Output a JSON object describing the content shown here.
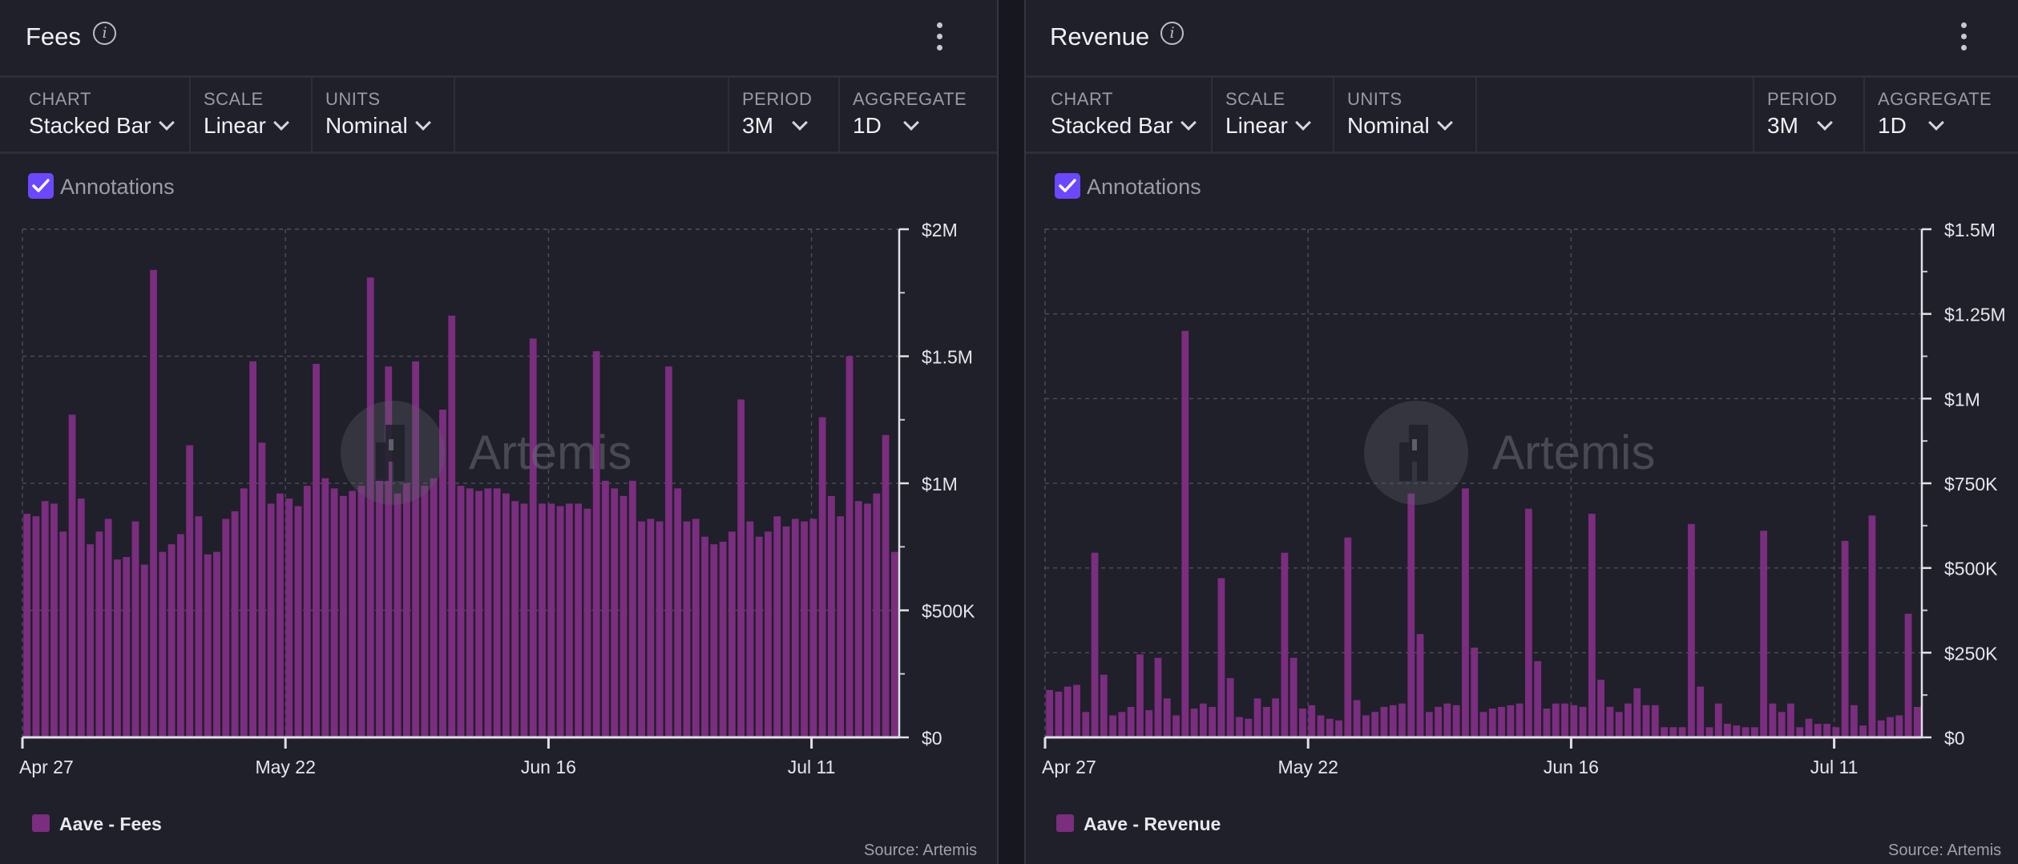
{
  "panels": [
    {
      "title": "Fees",
      "controls": {
        "chart": {
          "label": "CHART",
          "value": "Stacked Bar"
        },
        "scale": {
          "label": "SCALE",
          "value": "Linear"
        },
        "units": {
          "label": "UNITS",
          "value": "Nominal"
        },
        "period": {
          "label": "PERIOD",
          "value": "3M"
        },
        "aggregate": {
          "label": "AGGREGATE",
          "value": "1D"
        }
      },
      "annotations_label": "Annotations",
      "annotations_checked": true,
      "watermark": "Artemis",
      "legend": "Aave - Fees",
      "source": "Source: Artemis"
    },
    {
      "title": "Revenue",
      "controls": {
        "chart": {
          "label": "CHART",
          "value": "Stacked Bar"
        },
        "scale": {
          "label": "SCALE",
          "value": "Linear"
        },
        "units": {
          "label": "UNITS",
          "value": "Nominal"
        },
        "period": {
          "label": "PERIOD",
          "value": "3M"
        },
        "aggregate": {
          "label": "AGGREGATE",
          "value": "1D"
        }
      },
      "annotations_label": "Annotations",
      "annotations_checked": true,
      "watermark": "Artemis",
      "legend": "Aave - Revenue",
      "source": "Source: Artemis"
    }
  ],
  "colors": {
    "bar": "#7b2d7f",
    "accent": "#6b48ff",
    "grid": "#4a4b57"
  },
  "icons": [
    "info-icon",
    "kebab-menu-icon",
    "chevron-down-icon",
    "checkbox-checked-icon",
    "artemis-logo-icon"
  ],
  "chart_data": [
    {
      "type": "bar",
      "series": [
        {
          "name": "Aave - Fees",
          "values": [
            880000,
            870000,
            930000,
            920000,
            810000,
            1270000,
            940000,
            760000,
            810000,
            860000,
            700000,
            710000,
            850000,
            680000,
            1840000,
            730000,
            760000,
            800000,
            1150000,
            870000,
            720000,
            730000,
            860000,
            890000,
            980000,
            1480000,
            1160000,
            920000,
            960000,
            940000,
            910000,
            990000,
            1470000,
            1020000,
            980000,
            950000,
            970000,
            990000,
            1810000,
            1020000,
            1460000,
            960000,
            1000000,
            1480000,
            990000,
            1020000,
            1290000,
            1660000,
            990000,
            980000,
            970000,
            980000,
            980000,
            960000,
            930000,
            920000,
            1570000,
            920000,
            920000,
            910000,
            920000,
            920000,
            900000,
            1520000,
            1010000,
            980000,
            950000,
            1010000,
            850000,
            860000,
            850000,
            1460000,
            980000,
            850000,
            860000,
            790000,
            760000,
            770000,
            810000,
            1330000,
            850000,
            790000,
            810000,
            870000,
            830000,
            860000,
            850000,
            860000,
            1260000,
            950000,
            870000,
            1500000,
            930000,
            920000,
            960000,
            1190000,
            730000
          ]
        }
      ],
      "x_tick_labels": [
        "Apr 27",
        "May 22",
        "Jun 16",
        "Jul 11"
      ],
      "y_tick_labels": [
        "$0",
        "$500K",
        "$1M",
        "$1.5M",
        "$2M"
      ],
      "ylim": [
        0,
        2000000
      ],
      "grid": true,
      "axis_position": "right"
    },
    {
      "type": "bar",
      "series": [
        {
          "name": "Aave - Revenue",
          "values": [
            140000,
            135000,
            150000,
            155000,
            75000,
            545000,
            185000,
            65000,
            75000,
            90000,
            245000,
            80000,
            235000,
            115000,
            65000,
            1200000,
            85000,
            100000,
            90000,
            470000,
            175000,
            60000,
            55000,
            115000,
            90000,
            115000,
            545000,
            235000,
            85000,
            95000,
            65000,
            55000,
            50000,
            590000,
            110000,
            65000,
            75000,
            90000,
            95000,
            100000,
            720000,
            305000,
            75000,
            90000,
            100000,
            95000,
            735000,
            265000,
            75000,
            85000,
            90000,
            95000,
            100000,
            675000,
            225000,
            85000,
            100000,
            100000,
            95000,
            90000,
            660000,
            170000,
            90000,
            75000,
            100000,
            145000,
            95000,
            95000,
            30000,
            30000,
            30000,
            630000,
            150000,
            30000,
            100000,
            40000,
            35000,
            30000,
            30000,
            610000,
            100000,
            75000,
            100000,
            30000,
            55000,
            40000,
            40000,
            30000,
            580000,
            95000,
            35000,
            655000,
            50000,
            60000,
            65000,
            365000,
            90000
          ]
        }
      ],
      "x_tick_labels": [
        "Apr 27",
        "May 22",
        "Jun 16",
        "Jul 11"
      ],
      "y_tick_labels": [
        "$0",
        "$250K",
        "$500K",
        "$750K",
        "$1M",
        "$1.25M",
        "$1.5M"
      ],
      "ylim": [
        0,
        1500000
      ],
      "grid": true,
      "axis_position": "right"
    }
  ]
}
